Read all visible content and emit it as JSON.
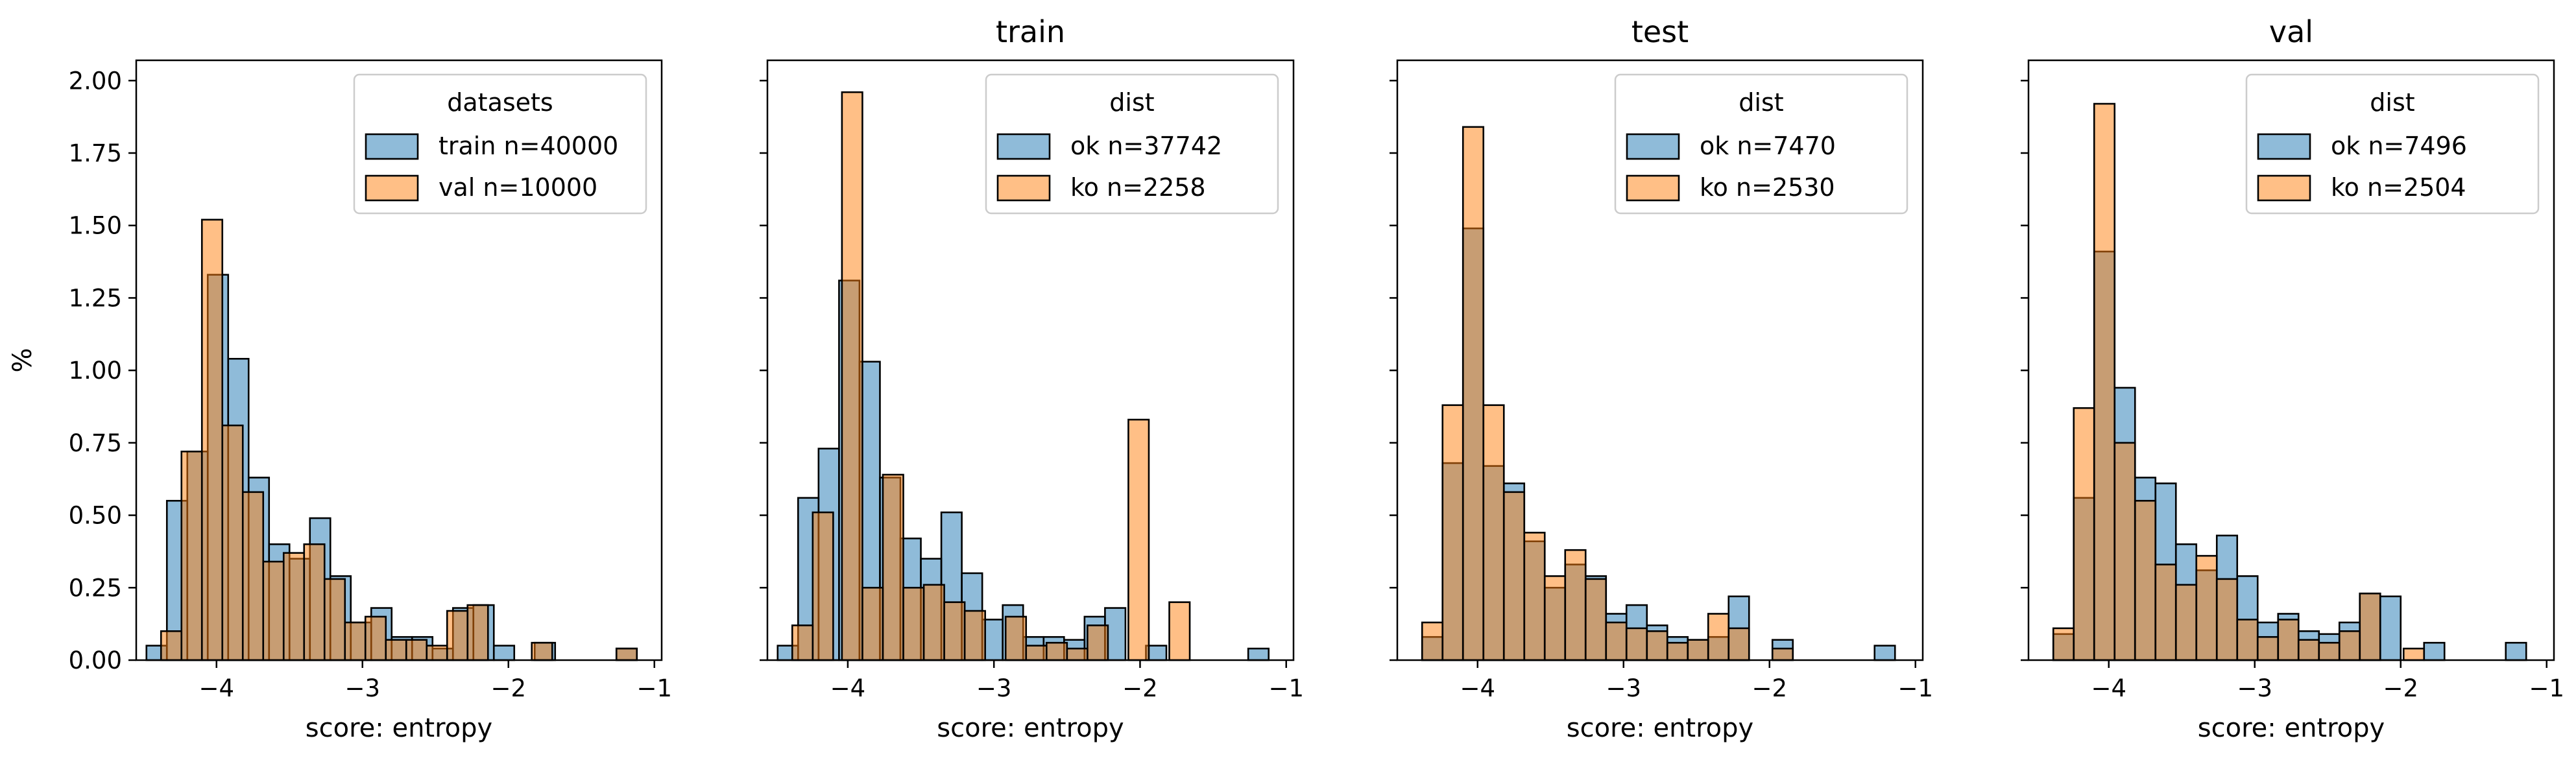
{
  "chart_data": [
    {
      "type": "bar",
      "title": "",
      "xlabel": "score: entropy",
      "ylabel": "%",
      "xlim": [
        -4.55,
        -0.95
      ],
      "ylim": [
        0,
        2.07
      ],
      "xticks": [
        -4,
        -3,
        -2,
        -1
      ],
      "xtick_labels": [
        "−4",
        "−3",
        "−2",
        "−1"
      ],
      "yticks": [
        0,
        0.25,
        0.5,
        0.75,
        1.0,
        1.25,
        1.5,
        1.75,
        2.0
      ],
      "ytick_labels": [
        "0.00",
        "0.25",
        "0.50",
        "0.75",
        "1.00",
        "1.25",
        "1.50",
        "1.75",
        "2.00"
      ],
      "legend": {
        "title": "datasets",
        "location": "upper right"
      },
      "series": [
        {
          "name": "train n=40000",
          "color": "#1f77b4",
          "bins": [
            [
              -4.48,
              -4.34,
              0.05
            ],
            [
              -4.34,
              -4.2,
              0.55
            ],
            [
              -4.2,
              -4.06,
              0.72
            ],
            [
              -4.06,
              -3.92,
              1.33
            ],
            [
              -3.92,
              -3.78,
              1.04
            ],
            [
              -3.78,
              -3.64,
              0.63
            ],
            [
              -3.64,
              -3.5,
              0.4
            ],
            [
              -3.5,
              -3.36,
              0.35
            ],
            [
              -3.36,
              -3.22,
              0.49
            ],
            [
              -3.22,
              -3.08,
              0.29
            ],
            [
              -3.08,
              -2.94,
              0.13
            ],
            [
              -2.94,
              -2.8,
              0.18
            ],
            [
              -2.8,
              -2.66,
              0.08
            ],
            [
              -2.66,
              -2.52,
              0.08
            ],
            [
              -2.52,
              -2.38,
              0.04
            ],
            [
              -2.38,
              -2.24,
              0.18
            ],
            [
              -2.24,
              -2.1,
              0.19
            ],
            [
              -2.1,
              -1.96,
              0.05
            ],
            [
              -1.82,
              -1.68,
              0.06
            ],
            [
              -1.26,
              -1.12,
              0.04
            ]
          ]
        },
        {
          "name": "val n=10000",
          "color": "#ff7f0e",
          "bins": [
            [
              -4.38,
              -4.24,
              0.1
            ],
            [
              -4.24,
              -4.1,
              0.72
            ],
            [
              -4.1,
              -3.96,
              1.52
            ],
            [
              -3.96,
              -3.82,
              0.81
            ],
            [
              -3.82,
              -3.68,
              0.58
            ],
            [
              -3.68,
              -3.54,
              0.34
            ],
            [
              -3.54,
              -3.4,
              0.37
            ],
            [
              -3.4,
              -3.26,
              0.4
            ],
            [
              -3.26,
              -3.12,
              0.28
            ],
            [
              -3.12,
              -2.98,
              0.13
            ],
            [
              -2.98,
              -2.84,
              0.15
            ],
            [
              -2.84,
              -2.7,
              0.07
            ],
            [
              -2.7,
              -2.56,
              0.07
            ],
            [
              -2.56,
              -2.42,
              0.05
            ],
            [
              -2.42,
              -2.28,
              0.17
            ],
            [
              -2.28,
              -2.14,
              0.19
            ],
            [
              -1.84,
              -1.7,
              0.06
            ],
            [
              -1.26,
              -1.12,
              0.04
            ]
          ]
        }
      ]
    },
    {
      "type": "bar",
      "title": "train",
      "xlabel": "score: entropy",
      "ylabel": "",
      "xlim": [
        -4.55,
        -0.95
      ],
      "ylim": [
        0,
        2.07
      ],
      "xticks": [
        -4,
        -3,
        -2,
        -1
      ],
      "xtick_labels": [
        "−4",
        "−3",
        "−2",
        "−1"
      ],
      "yticks": [
        0,
        0.25,
        0.5,
        0.75,
        1.0,
        1.25,
        1.5,
        1.75,
        2.0
      ],
      "ytick_labels": [],
      "legend": {
        "title": "dist",
        "location": "upper right"
      },
      "series": [
        {
          "name": "ok n=37742",
          "color": "#1f77b4",
          "bins": [
            [
              -4.48,
              -4.34,
              0.05
            ],
            [
              -4.34,
              -4.2,
              0.56
            ],
            [
              -4.2,
              -4.06,
              0.73
            ],
            [
              -4.06,
              -3.92,
              1.31
            ],
            [
              -3.92,
              -3.78,
              1.03
            ],
            [
              -3.78,
              -3.64,
              0.63
            ],
            [
              -3.64,
              -3.5,
              0.42
            ],
            [
              -3.5,
              -3.36,
              0.35
            ],
            [
              -3.36,
              -3.22,
              0.51
            ],
            [
              -3.22,
              -3.08,
              0.3
            ],
            [
              -3.08,
              -2.94,
              0.14
            ],
            [
              -2.94,
              -2.8,
              0.19
            ],
            [
              -2.8,
              -2.66,
              0.08
            ],
            [
              -2.66,
              -2.52,
              0.08
            ],
            [
              -2.52,
              -2.38,
              0.07
            ],
            [
              -2.38,
              -2.24,
              0.15
            ],
            [
              -2.24,
              -2.1,
              0.18
            ],
            [
              -1.96,
              -1.82,
              0.05
            ],
            [
              -1.26,
              -1.12,
              0.04
            ]
          ]
        },
        {
          "name": "ko n=2258",
          "color": "#ff7f0e",
          "bins": [
            [
              -4.38,
              -4.24,
              0.12
            ],
            [
              -4.24,
              -4.1,
              0.51
            ],
            [
              -4.04,
              -3.9,
              1.96
            ],
            [
              -3.9,
              -3.76,
              0.25
            ],
            [
              -3.76,
              -3.62,
              0.64
            ],
            [
              -3.62,
              -3.48,
              0.25
            ],
            [
              -3.48,
              -3.34,
              0.26
            ],
            [
              -3.34,
              -3.2,
              0.2
            ],
            [
              -3.2,
              -3.06,
              0.17
            ],
            [
              -2.92,
              -2.78,
              0.15
            ],
            [
              -2.78,
              -2.64,
              0.05
            ],
            [
              -2.64,
              -2.5,
              0.06
            ],
            [
              -2.5,
              -2.36,
              0.04
            ],
            [
              -2.36,
              -2.22,
              0.12
            ],
            [
              -2.08,
              -1.94,
              0.83
            ],
            [
              -1.8,
              -1.66,
              0.2
            ]
          ]
        }
      ]
    },
    {
      "type": "bar",
      "title": "test",
      "xlabel": "score: entropy",
      "ylabel": "",
      "xlim": [
        -4.55,
        -0.95
      ],
      "ylim": [
        0,
        2.07
      ],
      "xticks": [
        -4,
        -3,
        -2,
        -1
      ],
      "xtick_labels": [
        "−4",
        "−3",
        "−2",
        "−1"
      ],
      "yticks": [
        0,
        0.25,
        0.5,
        0.75,
        1.0,
        1.25,
        1.5,
        1.75,
        2.0
      ],
      "ytick_labels": [],
      "legend": {
        "title": "dist",
        "location": "upper right"
      },
      "series": [
        {
          "name": "ok n=7470",
          "color": "#1f77b4",
          "bins": [
            [
              -4.38,
              -4.24,
              0.08
            ],
            [
              -4.24,
              -4.1,
              0.68
            ],
            [
              -4.1,
              -3.96,
              1.49
            ],
            [
              -3.96,
              -3.82,
              0.67
            ],
            [
              -3.82,
              -3.68,
              0.61
            ],
            [
              -3.68,
              -3.54,
              0.41
            ],
            [
              -3.54,
              -3.4,
              0.25
            ],
            [
              -3.4,
              -3.26,
              0.33
            ],
            [
              -3.26,
              -3.12,
              0.29
            ],
            [
              -3.12,
              -2.98,
              0.16
            ],
            [
              -2.98,
              -2.84,
              0.19
            ],
            [
              -2.84,
              -2.7,
              0.12
            ],
            [
              -2.7,
              -2.56,
              0.08
            ],
            [
              -2.56,
              -2.42,
              0.07
            ],
            [
              -2.42,
              -2.28,
              0.08
            ],
            [
              -2.28,
              -2.14,
              0.22
            ],
            [
              -1.98,
              -1.84,
              0.07
            ],
            [
              -1.28,
              -1.14,
              0.05
            ]
          ]
        },
        {
          "name": "ko n=2530",
          "color": "#ff7f0e",
          "bins": [
            [
              -4.38,
              -4.24,
              0.13
            ],
            [
              -4.24,
              -4.1,
              0.88
            ],
            [
              -4.1,
              -3.96,
              1.84
            ],
            [
              -3.96,
              -3.82,
              0.88
            ],
            [
              -3.82,
              -3.68,
              0.58
            ],
            [
              -3.68,
              -3.54,
              0.44
            ],
            [
              -3.54,
              -3.4,
              0.29
            ],
            [
              -3.4,
              -3.26,
              0.38
            ],
            [
              -3.26,
              -3.12,
              0.28
            ],
            [
              -3.12,
              -2.98,
              0.13
            ],
            [
              -2.98,
              -2.84,
              0.11
            ],
            [
              -2.84,
              -2.7,
              0.1
            ],
            [
              -2.7,
              -2.56,
              0.06
            ],
            [
              -2.56,
              -2.42,
              0.07
            ],
            [
              -2.42,
              -2.28,
              0.16
            ],
            [
              -2.28,
              -2.14,
              0.11
            ],
            [
              -1.98,
              -1.84,
              0.04
            ]
          ]
        }
      ]
    },
    {
      "type": "bar",
      "title": "val",
      "xlabel": "score: entropy",
      "ylabel": "",
      "xlim": [
        -4.55,
        -0.95
      ],
      "ylim": [
        0,
        2.07
      ],
      "xticks": [
        -4,
        -3,
        -2,
        -1
      ],
      "xtick_labels": [
        "−4",
        "−3",
        "−2",
        "−1"
      ],
      "yticks": [
        0,
        0.25,
        0.5,
        0.75,
        1.0,
        1.25,
        1.5,
        1.75,
        2.0
      ],
      "ytick_labels": [],
      "legend": {
        "title": "dist",
        "location": "upper right"
      },
      "series": [
        {
          "name": "ok n=7496",
          "color": "#1f77b4",
          "bins": [
            [
              -4.38,
              -4.24,
              0.09
            ],
            [
              -4.24,
              -4.1,
              0.56
            ],
            [
              -4.1,
              -3.96,
              1.41
            ],
            [
              -3.96,
              -3.82,
              0.94
            ],
            [
              -3.82,
              -3.68,
              0.63
            ],
            [
              -3.68,
              -3.54,
              0.61
            ],
            [
              -3.54,
              -3.4,
              0.4
            ],
            [
              -3.4,
              -3.26,
              0.31
            ],
            [
              -3.26,
              -3.12,
              0.43
            ],
            [
              -3.12,
              -2.98,
              0.29
            ],
            [
              -2.98,
              -2.84,
              0.13
            ],
            [
              -2.84,
              -2.7,
              0.16
            ],
            [
              -2.7,
              -2.56,
              0.1
            ],
            [
              -2.56,
              -2.42,
              0.09
            ],
            [
              -2.42,
              -2.28,
              0.13
            ],
            [
              -2.28,
              -2.14,
              0.23
            ],
            [
              -2.14,
              -2.0,
              0.22
            ],
            [
              -1.84,
              -1.7,
              0.06
            ],
            [
              -1.28,
              -1.14,
              0.06
            ]
          ]
        },
        {
          "name": "ko n=2504",
          "color": "#ff7f0e",
          "bins": [
            [
              -4.38,
              -4.24,
              0.11
            ],
            [
              -4.24,
              -4.1,
              0.87
            ],
            [
              -4.1,
              -3.96,
              1.92
            ],
            [
              -3.96,
              -3.82,
              0.75
            ],
            [
              -3.82,
              -3.68,
              0.55
            ],
            [
              -3.68,
              -3.54,
              0.33
            ],
            [
              -3.54,
              -3.4,
              0.26
            ],
            [
              -3.4,
              -3.26,
              0.36
            ],
            [
              -3.26,
              -3.12,
              0.28
            ],
            [
              -3.12,
              -2.98,
              0.14
            ],
            [
              -2.98,
              -2.84,
              0.08
            ],
            [
              -2.84,
              -2.7,
              0.14
            ],
            [
              -2.7,
              -2.56,
              0.07
            ],
            [
              -2.56,
              -2.42,
              0.06
            ],
            [
              -2.42,
              -2.28,
              0.1
            ],
            [
              -2.28,
              -2.14,
              0.23
            ],
            [
              -1.98,
              -1.84,
              0.04
            ]
          ]
        }
      ]
    }
  ]
}
